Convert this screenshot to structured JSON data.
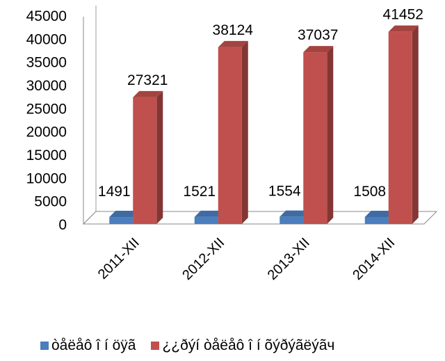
{
  "chart_data": {
    "type": "bar",
    "categories": [
      "2011-XII",
      "2012-XII",
      "2013-XII",
      "2014-XII"
    ],
    "series": [
      {
        "name": "òåëåô î í öÿã",
        "values": [
          1491,
          1521,
          1554,
          1508
        ],
        "color": "#4a7ebf"
      },
      {
        "name": "¿¿ðýí òåëåô î í õýðýãëýãч",
        "values": [
          27321,
          38124,
          37037,
          41452
        ],
        "color": "#c0504d"
      }
    ],
    "y_ticks": [
      "0",
      "5000",
      "10000",
      "15000",
      "20000",
      "25000",
      "30000",
      "35000",
      "40000",
      "45000"
    ],
    "data_labels": [
      [
        "1491",
        "1521",
        "1554",
        "1508"
      ],
      [
        "27321",
        "38124",
        "37037",
        "41452"
      ]
    ],
    "ylim": [
      0,
      45000
    ],
    "grid": false,
    "legend_position": "bottom",
    "style": "3d-column"
  }
}
